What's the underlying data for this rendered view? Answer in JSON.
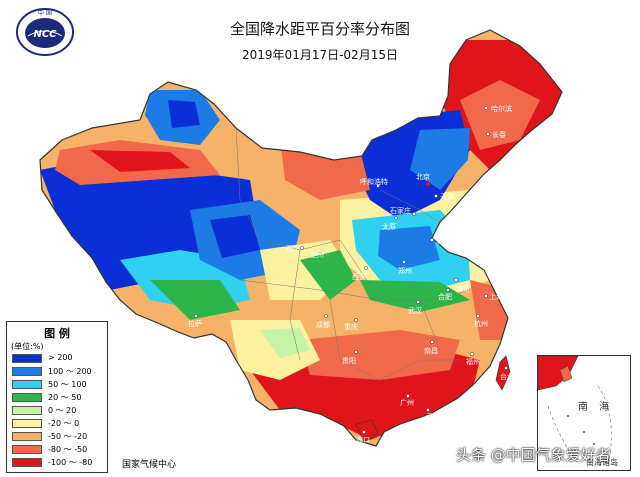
{
  "header": {
    "title": "全国降水距平百分率分布图",
    "subtitle": "2019年01月17日-02月15日",
    "logo_text": "NCC",
    "logo_top_text": "中 国"
  },
  "legend": {
    "title": "图 例",
    "unit": "(单位:%)",
    "items": [
      {
        "label": "> 200",
        "color": "#0a2fd6"
      },
      {
        "label": "100 ～ 200",
        "color": "#1d7be6"
      },
      {
        "label": "50 ～ 100",
        "color": "#2fd0f0"
      },
      {
        "label": "20 ～ 50",
        "color": "#2db54a"
      },
      {
        "label": "0 ～ 20",
        "color": "#c6f3a8"
      },
      {
        "label": "-20 ～ 0",
        "color": "#fbf1a0"
      },
      {
        "label": "-50 ～ -20",
        "color": "#f7b26a"
      },
      {
        "label": "-80 ～ -50",
        "color": "#f06a4a"
      },
      {
        "label": "-100 ～ -80",
        "color": "#e0151c"
      }
    ]
  },
  "footer": {
    "source": "国家气候中心"
  },
  "inset": {
    "sea_label": "南 海",
    "islands_label": "南海诸岛"
  },
  "watermark": "头条 @中国气象爱好者",
  "cities": [
    {
      "id": "haerbin",
      "name": "哈尔滨"
    },
    {
      "id": "changchun",
      "name": "长春"
    },
    {
      "id": "huhehaote",
      "name": "呼和浩特"
    },
    {
      "id": "beijing",
      "name": "北京"
    },
    {
      "id": "tianjin",
      "name": "天津"
    },
    {
      "id": "shijiazhuang",
      "name": "石家庄"
    },
    {
      "id": "taiyuan",
      "name": "太原"
    },
    {
      "id": "jinan",
      "name": "济南"
    },
    {
      "id": "zhengzhou",
      "name": "郑州"
    },
    {
      "id": "xian",
      "name": "西安"
    },
    {
      "id": "lanzhou",
      "name": "兰州"
    },
    {
      "id": "xining",
      "name": "西宁"
    },
    {
      "id": "nanjing",
      "name": "南京"
    },
    {
      "id": "shanghai",
      "name": "上海"
    },
    {
      "id": "hangzhou",
      "name": "杭州"
    },
    {
      "id": "hefei",
      "name": "合肥"
    },
    {
      "id": "wuhan",
      "name": "武汉"
    },
    {
      "id": "chongqing",
      "name": "重庆"
    },
    {
      "id": "chengdu",
      "name": "成都"
    },
    {
      "id": "guiyang",
      "name": "贵阳"
    },
    {
      "id": "nanchang",
      "name": "南昌"
    },
    {
      "id": "fuzhou",
      "name": "福州"
    },
    {
      "id": "taibei",
      "name": "台北"
    },
    {
      "id": "guangzhou",
      "name": "广州"
    },
    {
      "id": "xianggang",
      "name": "香港"
    },
    {
      "id": "haikou",
      "name": "海口"
    },
    {
      "id": "lasa",
      "name": "拉萨"
    }
  ]
}
